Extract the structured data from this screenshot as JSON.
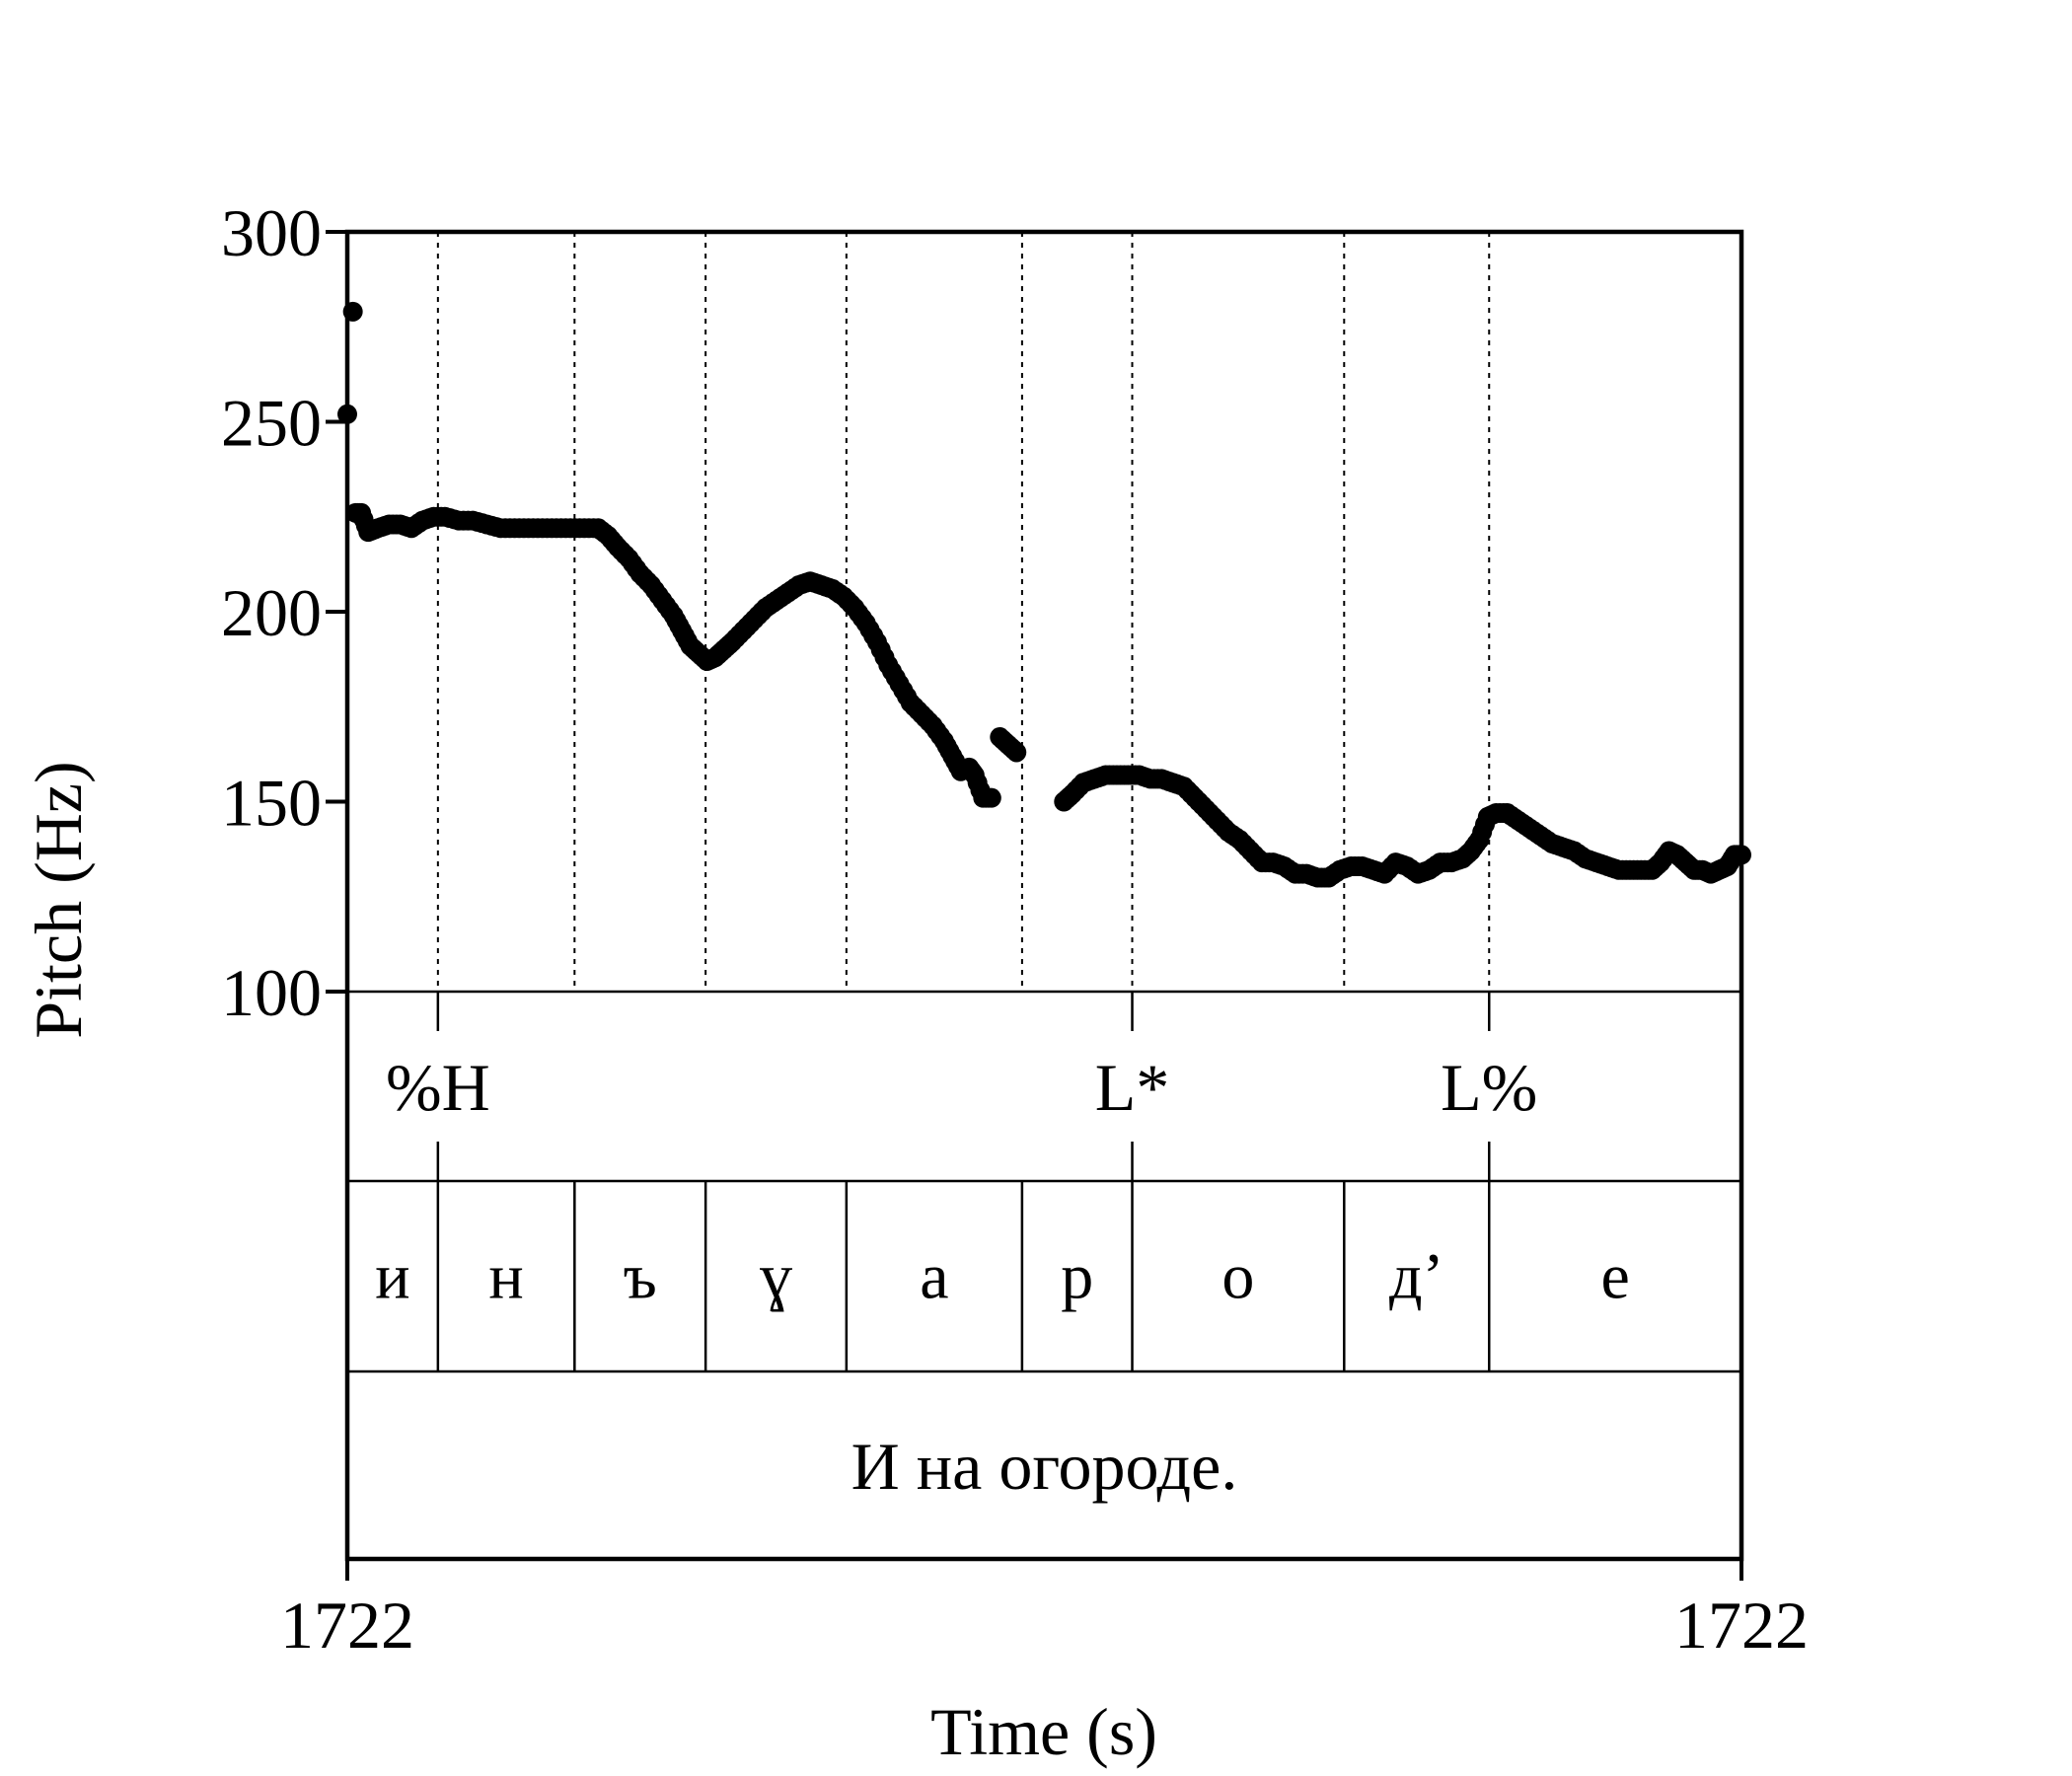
{
  "chart_data": {
    "type": "scatter",
    "title": "",
    "xlabel": "Time (s)",
    "ylabel": "Pitch (Hz)",
    "ylim": [
      100,
      300
    ],
    "yticks": [
      "300",
      "250",
      "200",
      "150",
      "100"
    ],
    "yticks_values": [
      300,
      250,
      200,
      150,
      100
    ],
    "xtick_labels": [
      "1722",
      "1722"
    ],
    "time_range": [
      0,
      1
    ],
    "grid": "vertical dotted lines at phone boundaries",
    "series": [
      {
        "points": [
          [
            0.0,
            252
          ],
          [
            0.004,
            279
          ],
          [
            0.006,
            226
          ],
          [
            0.01,
            226
          ],
          [
            0.015,
            221
          ],
          [
            0.022,
            222
          ],
          [
            0.03,
            223
          ],
          [
            0.038,
            223
          ],
          [
            0.046,
            222
          ],
          [
            0.054,
            224
          ],
          [
            0.062,
            225
          ],
          [
            0.07,
            225
          ],
          [
            0.08,
            224
          ],
          [
            0.09,
            224
          ],
          [
            0.1,
            223
          ],
          [
            0.11,
            222
          ],
          [
            0.12,
            222
          ],
          [
            0.13,
            222
          ],
          [
            0.14,
            222
          ],
          [
            0.15,
            222
          ],
          [
            0.16,
            222
          ],
          [
            0.17,
            222
          ],
          [
            0.18,
            222
          ],
          [
            0.187,
            220
          ],
          [
            0.194,
            217
          ],
          [
            0.202,
            214
          ],
          [
            0.21,
            210
          ],
          [
            0.218,
            207
          ],
          [
            0.226,
            203
          ],
          [
            0.234,
            199
          ],
          [
            0.24,
            195
          ],
          [
            0.246,
            191
          ],
          [
            0.252,
            189
          ],
          [
            0.258,
            187
          ],
          [
            0.264,
            188
          ],
          [
            0.27,
            190
          ],
          [
            0.276,
            192
          ],
          [
            0.284,
            195
          ],
          [
            0.292,
            198
          ],
          [
            0.3,
            201
          ],
          [
            0.308,
            203
          ],
          [
            0.316,
            205
          ],
          [
            0.324,
            207
          ],
          [
            0.332,
            208
          ],
          [
            0.34,
            207
          ],
          [
            0.348,
            206
          ],
          [
            0.356,
            204
          ],
          [
            0.364,
            201
          ],
          [
            0.372,
            197
          ],
          [
            0.38,
            192
          ],
          [
            0.388,
            186
          ],
          [
            0.396,
            181
          ],
          [
            0.404,
            176
          ],
          [
            0.412,
            173
          ],
          [
            0.42,
            170
          ],
          [
            0.428,
            166
          ],
          [
            0.434,
            162
          ],
          [
            0.44,
            158
          ],
          [
            0.446,
            159
          ],
          [
            0.45,
            157
          ],
          [
            0.456,
            151
          ],
          [
            0.462,
            151
          ],
          [
            0.468,
            167
          ],
          [
            0.474,
            165
          ],
          [
            0.48,
            163
          ],
          [
            0.514,
            150
          ],
          [
            0.52,
            152
          ],
          [
            0.528,
            155
          ],
          [
            0.536,
            156
          ],
          [
            0.544,
            157
          ],
          [
            0.552,
            157
          ],
          [
            0.56,
            157
          ],
          [
            0.568,
            157
          ],
          [
            0.576,
            156
          ],
          [
            0.584,
            156
          ],
          [
            0.592,
            155
          ],
          [
            0.6,
            154
          ],
          [
            0.608,
            151
          ],
          [
            0.616,
            148
          ],
          [
            0.624,
            145
          ],
          [
            0.632,
            142
          ],
          [
            0.64,
            140
          ],
          [
            0.648,
            137
          ],
          [
            0.656,
            134
          ],
          [
            0.664,
            134
          ],
          [
            0.672,
            133
          ],
          [
            0.68,
            131
          ],
          [
            0.688,
            131
          ],
          [
            0.696,
            130
          ],
          [
            0.704,
            130
          ],
          [
            0.712,
            132
          ],
          [
            0.72,
            133
          ],
          [
            0.728,
            133
          ],
          [
            0.736,
            132
          ],
          [
            0.744,
            131
          ],
          [
            0.752,
            134
          ],
          [
            0.76,
            133
          ],
          [
            0.768,
            131
          ],
          [
            0.776,
            132
          ],
          [
            0.784,
            134
          ],
          [
            0.792,
            134
          ],
          [
            0.8,
            135
          ],
          [
            0.806,
            137
          ],
          [
            0.812,
            140
          ],
          [
            0.818,
            146
          ],
          [
            0.824,
            147
          ],
          [
            0.832,
            147
          ],
          [
            0.84,
            145
          ],
          [
            0.848,
            143
          ],
          [
            0.856,
            141
          ],
          [
            0.864,
            139
          ],
          [
            0.872,
            138
          ],
          [
            0.88,
            137
          ],
          [
            0.888,
            135
          ],
          [
            0.896,
            134
          ],
          [
            0.904,
            133
          ],
          [
            0.912,
            132
          ],
          [
            0.92,
            132
          ],
          [
            0.928,
            132
          ],
          [
            0.936,
            132
          ],
          [
            0.942,
            134
          ],
          [
            0.948,
            137
          ],
          [
            0.954,
            136
          ],
          [
            0.96,
            134
          ],
          [
            0.966,
            132
          ],
          [
            0.972,
            132
          ],
          [
            0.978,
            131
          ],
          [
            0.984,
            132
          ],
          [
            0.99,
            133
          ],
          [
            0.995,
            136
          ],
          [
            1.0,
            136
          ]
        ]
      }
    ],
    "boundaries": [
      0.065,
      0.163,
      0.257,
      0.358,
      0.484,
      0.563,
      0.715,
      0.819
    ],
    "tiers": {
      "tones": [
        {
          "label": "%H",
          "at": 0.065
        },
        {
          "label": "L*",
          "at": 0.563
        },
        {
          "label": "L%",
          "at": 0.819
        }
      ],
      "phones": [
        {
          "label": "и",
          "start": 0.0,
          "end": 0.065
        },
        {
          "label": "н",
          "start": 0.065,
          "end": 0.163
        },
        {
          "label": "ъ",
          "start": 0.163,
          "end": 0.257
        },
        {
          "label": "ɣ",
          "start": 0.257,
          "end": 0.358
        },
        {
          "label": "а",
          "start": 0.358,
          "end": 0.484
        },
        {
          "label": "р",
          "start": 0.484,
          "end": 0.563
        },
        {
          "label": "о",
          "start": 0.563,
          "end": 0.715
        },
        {
          "label": "д’",
          "start": 0.715,
          "end": 0.819
        },
        {
          "label": "е",
          "start": 0.819,
          "end": 1.0
        }
      ],
      "sentence": "И на огороде."
    }
  }
}
